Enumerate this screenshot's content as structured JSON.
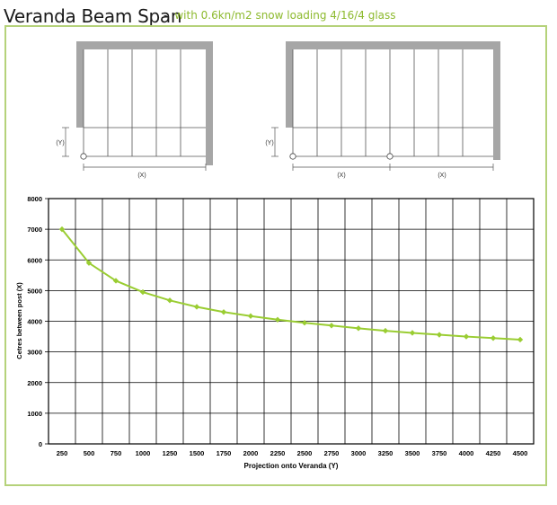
{
  "header": {
    "title": "Veranda Beam Span",
    "dash": "-",
    "subtitle": "with 0.6kn/m2 snow loading 4/16/4 glass"
  },
  "diagrams": {
    "left": {
      "y_label": "(Y)",
      "x_label": "(X)"
    },
    "right": {
      "y_label": "(Y)",
      "x_labels": [
        "(X)",
        "(X)"
      ]
    }
  },
  "colors": {
    "accent": "#8dba2e",
    "frame": "#b5d27a",
    "wall": "#a6a6a6",
    "line": "#9acd32"
  },
  "chart_data": {
    "type": "line",
    "xlabel": "Projection onto Veranda (Y)",
    "ylabel": "Cetres between post (X)",
    "categories": [
      "250",
      "500",
      "750",
      "1000",
      "1250",
      "1500",
      "1750",
      "2000",
      "2250",
      "2500",
      "2750",
      "3000",
      "3250",
      "3500",
      "3750",
      "4000",
      "4250",
      "4500"
    ],
    "series": [
      {
        "values": [
          7000,
          5900,
          5320,
          4950,
          4680,
          4470,
          4300,
          4170,
          4050,
          3950,
          3860,
          3770,
          3690,
          3620,
          3560,
          3500,
          3450,
          3400
        ]
      }
    ],
    "ylim": [
      0,
      8000
    ],
    "yticks": [
      "0",
      "1000",
      "2000",
      "3000",
      "4000",
      "5000",
      "6000",
      "7000",
      "8000"
    ],
    "grid": true
  }
}
